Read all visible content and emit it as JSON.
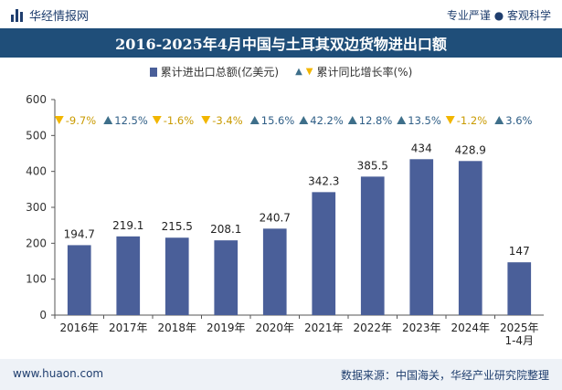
{
  "header": {
    "brand": "华经情报网",
    "slogan": "专业严谨 ● 客观科学",
    "title": "2016-2025年4月中国与土耳其双边货物进出口额"
  },
  "legend": {
    "bar_label": "累计进出口总额(亿美元)",
    "line_label": "累计同比增长率(%)"
  },
  "footer": {
    "url": "www.huaon.com",
    "source": "数据来源：中国海关，华经产业研究院整理"
  },
  "colors": {
    "bar": "#4a5f99",
    "title_bg": "#1f4e79",
    "up": "#3e6f8a",
    "down": "#f2b600"
  },
  "chart_data": {
    "type": "bar",
    "categories": [
      "2016年",
      "2017年",
      "2018年",
      "2019年",
      "2020年",
      "2021年",
      "2022年",
      "2023年",
      "2024年",
      "2025年\n1-4月"
    ],
    "series": [
      {
        "name": "累计进出口总额(亿美元)",
        "values": [
          194.7,
          219.1,
          215.5,
          208.1,
          240.7,
          342.3,
          385.5,
          434,
          428.9,
          147
        ]
      },
      {
        "name": "累计同比增长率(%)",
        "values": [
          -9.7,
          12.5,
          -1.6,
          -3.4,
          15.6,
          42.2,
          12.8,
          13.5,
          -1.2,
          3.6
        ]
      }
    ],
    "value_labels": [
      "194.7",
      "219.1",
      "215.5",
      "208.1",
      "240.7",
      "342.3",
      "385.5",
      "434",
      "428.9",
      "147"
    ],
    "growth_labels": [
      "-9.7%",
      "12.5%",
      "-1.6%",
      "-3.4%",
      "15.6%",
      "42.2%",
      "12.8%",
      "13.5%",
      "-1.2%",
      "3.6%"
    ],
    "yticks": [
      "0",
      "100",
      "200",
      "300",
      "400",
      "500",
      "600"
    ],
    "ylim": [
      0,
      600
    ],
    "grid": false,
    "legend_position": "top-center"
  }
}
